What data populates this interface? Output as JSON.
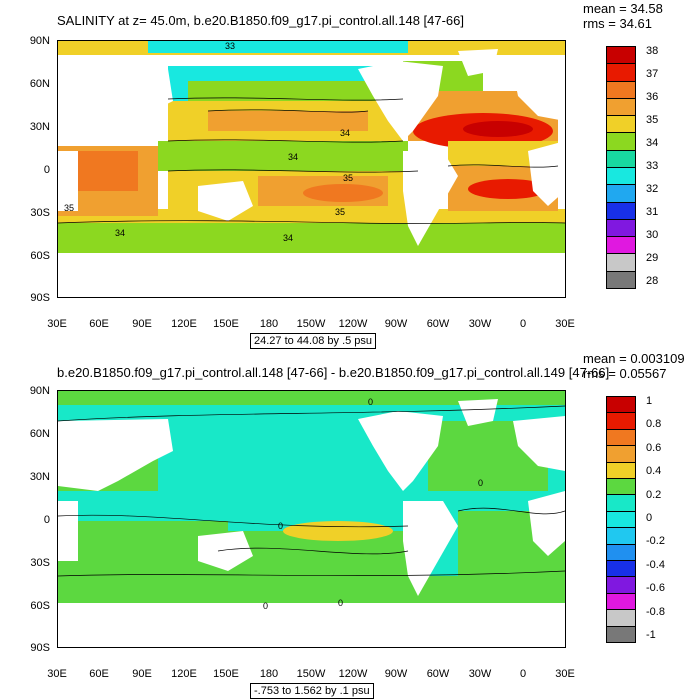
{
  "panel1": {
    "title": "SALINITY at z=  45.0m, b.e20.B1850.f09_g17.pi_control.all.148 [47-66]",
    "mean": "mean = 34.58",
    "rms": "rms = 34.61",
    "range": "24.27 to 44.08 by .5 psu",
    "contour_labels": [
      "33",
      "34",
      "34",
      "35",
      "35",
      "35",
      "34",
      "34"
    ],
    "colorbar": {
      "labels": [
        "38",
        "37",
        "36",
        "35",
        "34",
        "33",
        "32",
        "31",
        "30",
        "29",
        "28"
      ],
      "colors": [
        "#c80000",
        "#e81a00",
        "#f07820",
        "#f0a030",
        "#f0d028",
        "#8cd820",
        "#18d8a0",
        "#18e8e0",
        "#20a8f0",
        "#1830e8",
        "#8018e0",
        "#e018e0",
        "#c8c8c8",
        "#787878"
      ]
    }
  },
  "panel2": {
    "title": "b.e20.B1850.f09_g17.pi_control.all.148 [47-66] - b.e20.B1850.f09_g17.pi_control.all.149 [47-66]",
    "mean": "mean = 0.003109",
    "rms": "rms = 0.05567",
    "range": "-.753 to 1.562 by .1 psu",
    "contour_labels": [
      "0",
      "0",
      "0",
      "0",
      "0"
    ],
    "colorbar": {
      "labels": [
        "1",
        "0.8",
        "0.6",
        "0.4",
        "0.2",
        "0",
        "-0.2",
        "-0.4",
        "-0.6",
        "-0.8",
        "-1"
      ],
      "colors": [
        "#c80000",
        "#e81a00",
        "#f07820",
        "#f0a030",
        "#f0d028",
        "#5cd840",
        "#18e8c8",
        "#18e8e0",
        "#20c8f0",
        "#2090f0",
        "#1830e8",
        "#8018e0",
        "#e018e0",
        "#c8c8c8",
        "#787878"
      ]
    }
  },
  "axes": {
    "lat_labels": [
      "90N",
      "60N",
      "30N",
      "0",
      "30S",
      "60S",
      "90S"
    ],
    "lon_labels": [
      "30E",
      "60E",
      "90E",
      "120E",
      "150E",
      "180",
      "150W",
      "120W",
      "90W",
      "60W",
      "30W",
      "0",
      "30E"
    ]
  }
}
